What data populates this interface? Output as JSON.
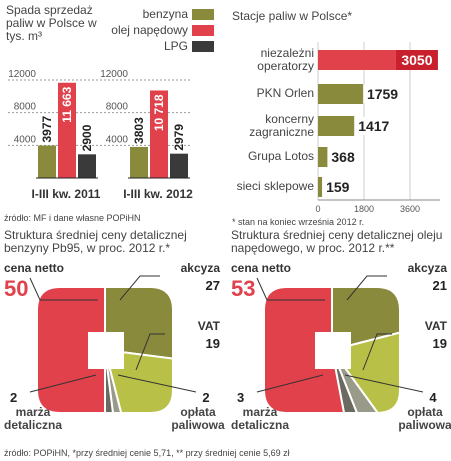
{
  "chart_data": [
    {
      "type": "bar",
      "title": "Spada sprzedaż paliw w Polsce w tys. m³",
      "categories": [
        "I-III kw. 2011",
        "I-III kw. 2012"
      ],
      "series": [
        {
          "name": "benzyna",
          "color": "#8a8a3c",
          "values": [
            3977,
            3803
          ]
        },
        {
          "name": "olej napędowy",
          "color": "#e0414b",
          "values": [
            11663,
            10718
          ],
          "value_labels": [
            "11 663",
            "10 718"
          ]
        },
        {
          "name": "LPG",
          "color": "#3a3a3a",
          "values": [
            2900,
            2979
          ]
        }
      ],
      "ylim": [
        0,
        12000
      ],
      "yticks": [
        4000,
        8000,
        12000
      ],
      "grid": true,
      "legend": "top-right",
      "source": "źródło: MF i dane własne POPiHN"
    },
    {
      "type": "hbar",
      "title": "Stacje paliw w Polsce*",
      "categories": [
        "niezależni operatorzy",
        "PKN Orlen",
        "koncerny zagraniczne",
        "Grupa Lotos",
        "sieci sklepowe"
      ],
      "values": [
        3050,
        1759,
        1417,
        368,
        159
      ],
      "colors": [
        "#e0414b",
        "#8a8a3c",
        "#8a8a3c",
        "#8a8a3c",
        "#8a8a3c"
      ],
      "xlim": [
        0,
        3600
      ],
      "xticks": [
        0,
        1800,
        3600
      ],
      "note": "* stan na koniec września 2012 r."
    },
    {
      "type": "pie",
      "title": "Struktura średniej ceny detalicznej benzyny Pb95, w proc. 2012 r.*",
      "categories": [
        "akcyza",
        "VAT",
        "opłata paliwowa",
        "marża detaliczna",
        "cena netto"
      ],
      "values": [
        27,
        19,
        2,
        2,
        50
      ],
      "colors": [
        "#8a8a3c",
        "#b9c048",
        "#9a9a8a",
        "#6a6a60",
        "#e0414b"
      ]
    },
    {
      "type": "pie",
      "title": "Struktura średniej ceny detalicznej oleju napędowego, w proc. 2012 r.**",
      "categories": [
        "akcyza",
        "VAT",
        "opłata paliwowa",
        "marża detaliczna",
        "cena netto"
      ],
      "values": [
        21,
        19,
        4,
        3,
        53
      ],
      "colors": [
        "#8a8a3c",
        "#b9c048",
        "#9a9a8a",
        "#6a6a60",
        "#e0414b"
      ],
      "source": "źródło: POPiHN, *przy średniej cenie 5,71, ** przy średniej cenie 5,69 zł"
    }
  ]
}
